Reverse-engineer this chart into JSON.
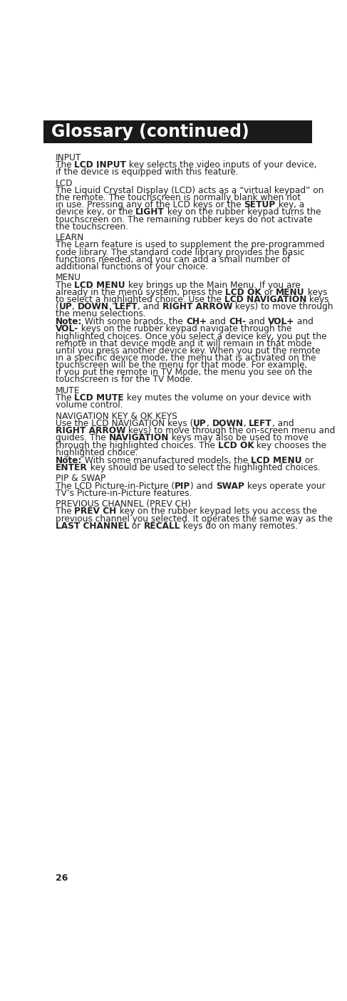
{
  "title": "Glossary (continued)",
  "title_bg": "#1a1a1a",
  "title_color": "#ffffff",
  "page_bg": "#ffffff",
  "page_number": "26",
  "body_color": "#222222",
  "sections": [
    {
      "heading": "INPUT",
      "paragraphs": [
        [
          {
            "text": "The ",
            "bold": false
          },
          {
            "text": "LCD INPUT",
            "bold": true
          },
          {
            "text": " key selects the video inputs of your device,",
            "bold": false
          },
          {
            "text": "\n",
            "bold": false
          },
          {
            "text": "if the device is equipped with this feature.",
            "bold": false
          }
        ]
      ]
    },
    {
      "heading": "LCD",
      "paragraphs": [
        [
          {
            "text": "The Liquid Crystal Display (LCD) acts as a “virtual keypad” on",
            "bold": false
          },
          {
            "text": "\n",
            "bold": false
          },
          {
            "text": "the remote. The touchscreen is normally blank when not",
            "bold": false
          },
          {
            "text": "\n",
            "bold": false
          },
          {
            "text": "in use. Pressing any of the LCD keys or the ",
            "bold": false
          },
          {
            "text": "SETUP",
            "bold": true
          },
          {
            "text": " key, a",
            "bold": false
          },
          {
            "text": "\n",
            "bold": false
          },
          {
            "text": "device key, or the ",
            "bold": false
          },
          {
            "text": "LIGHT",
            "bold": true
          },
          {
            "text": " key on the rubber keypad turns the",
            "bold": false
          },
          {
            "text": "\n",
            "bold": false
          },
          {
            "text": "touchscreen on. The remaining rubber keys do not activate",
            "bold": false
          },
          {
            "text": "\n",
            "bold": false
          },
          {
            "text": "the touchscreen.",
            "bold": false
          }
        ]
      ]
    },
    {
      "heading": "LEARN",
      "paragraphs": [
        [
          {
            "text": "The Learn feature is used to supplement the pre-programmed",
            "bold": false
          },
          {
            "text": "\n",
            "bold": false
          },
          {
            "text": "code library. The standard code library provides the basic",
            "bold": false
          },
          {
            "text": "\n",
            "bold": false
          },
          {
            "text": "functions needed, and you can add a small number of",
            "bold": false
          },
          {
            "text": "\n",
            "bold": false
          },
          {
            "text": "additional functions of your choice.",
            "bold": false
          }
        ]
      ]
    },
    {
      "heading": "MENU",
      "paragraphs": [
        [
          {
            "text": "The ",
            "bold": false
          },
          {
            "text": "LCD MENU",
            "bold": true
          },
          {
            "text": " key brings up the Main Menu. If you are",
            "bold": false
          },
          {
            "text": "\n",
            "bold": false
          },
          {
            "text": "already in the menu system, press the ",
            "bold": false
          },
          {
            "text": "LCD OK",
            "bold": true
          },
          {
            "text": " or ",
            "bold": false
          },
          {
            "text": "MENU",
            "bold": true
          },
          {
            "text": " keys",
            "bold": false
          },
          {
            "text": "\n",
            "bold": false
          },
          {
            "text": "to select a highlighted choice. Use the ",
            "bold": false
          },
          {
            "text": "LCD NAVIGATION",
            "bold": true
          },
          {
            "text": " keys",
            "bold": false
          },
          {
            "text": "\n",
            "bold": false
          },
          {
            "text": "(",
            "bold": false
          },
          {
            "text": "UP",
            "bold": true
          },
          {
            "text": ", ",
            "bold": false
          },
          {
            "text": "DOWN",
            "bold": true
          },
          {
            "text": ", ",
            "bold": false
          },
          {
            "text": "LEFT",
            "bold": true
          },
          {
            "text": ", and ",
            "bold": false
          },
          {
            "text": "RIGHT ARROW",
            "bold": true
          },
          {
            "text": " keys) to move through",
            "bold": false
          },
          {
            "text": "\n",
            "bold": false
          },
          {
            "text": "the menu selections.",
            "bold": false
          }
        ],
        [
          {
            "text": "Note:",
            "bold": true
          },
          {
            "text": " With some brands, the ",
            "bold": false
          },
          {
            "text": "CH+",
            "bold": true
          },
          {
            "text": " and ",
            "bold": false
          },
          {
            "text": "CH-",
            "bold": true
          },
          {
            "text": " and ",
            "bold": false
          },
          {
            "text": "VOL+",
            "bold": true
          },
          {
            "text": " and",
            "bold": false
          },
          {
            "text": "\n",
            "bold": false
          },
          {
            "text": "VOL-",
            "bold": true
          },
          {
            "text": " keys on the rubber keypad navigate through the",
            "bold": false
          },
          {
            "text": "\n",
            "bold": false
          },
          {
            "text": "highlighted choices. Once you select a device key, you put the",
            "bold": false
          },
          {
            "text": "\n",
            "bold": false
          },
          {
            "text": "remote in that device mode and it will remain in that mode",
            "bold": false
          },
          {
            "text": "\n",
            "bold": false
          },
          {
            "text": "until you press another device key. When you put the remote",
            "bold": false
          },
          {
            "text": "\n",
            "bold": false
          },
          {
            "text": "in a specific device mode, the menu that is activated on the",
            "bold": false
          },
          {
            "text": "\n",
            "bold": false
          },
          {
            "text": "touchscreen will be the menu for that mode. For example,",
            "bold": false
          },
          {
            "text": "\n",
            "bold": false
          },
          {
            "text": "if you put the remote in TV Mode, the menu you see on the",
            "bold": false
          },
          {
            "text": "\n",
            "bold": false
          },
          {
            "text": "touchscreen is for the TV Mode.",
            "bold": false
          }
        ]
      ]
    },
    {
      "heading": "MUTE",
      "paragraphs": [
        [
          {
            "text": "The ",
            "bold": false
          },
          {
            "text": "LCD MUTE",
            "bold": true
          },
          {
            "text": " key mutes the volume on your device with",
            "bold": false
          },
          {
            "text": "\n",
            "bold": false
          },
          {
            "text": "volume control.",
            "bold": false
          }
        ]
      ]
    },
    {
      "heading": "NAVIGATION KEY & OK KEYS",
      "paragraphs": [
        [
          {
            "text": "Use the LCD NAVIGATION keys (",
            "bold": false
          },
          {
            "text": "UP",
            "bold": true
          },
          {
            "text": ", ",
            "bold": false
          },
          {
            "text": "DOWN",
            "bold": true
          },
          {
            "text": ", ",
            "bold": false
          },
          {
            "text": "LEFT",
            "bold": true
          },
          {
            "text": ", and",
            "bold": false
          },
          {
            "text": "\n",
            "bold": false
          },
          {
            "text": "RIGHT ARROW",
            "bold": true
          },
          {
            "text": " keys) to move through the on-screen menu and",
            "bold": false
          },
          {
            "text": "\n",
            "bold": false
          },
          {
            "text": "guides. The ",
            "bold": false
          },
          {
            "text": "NAVIGATION",
            "bold": true
          },
          {
            "text": " keys may also be used to move",
            "bold": false
          },
          {
            "text": "\n",
            "bold": false
          },
          {
            "text": "through the highlighted choices. The ",
            "bold": false
          },
          {
            "text": "LCD OK",
            "bold": true
          },
          {
            "text": " key chooses the",
            "bold": false
          },
          {
            "text": "\n",
            "bold": false
          },
          {
            "text": "highlighted choice.",
            "bold": false
          }
        ],
        [
          {
            "text": "Note:",
            "bold": true
          },
          {
            "text": " With some manufactured models, the ",
            "bold": false
          },
          {
            "text": "LCD MENU",
            "bold": true
          },
          {
            "text": " or",
            "bold": false
          },
          {
            "text": "\n",
            "bold": false
          },
          {
            "text": "ENTER",
            "bold": true
          },
          {
            "text": " key should be used to select the highlighted choices.",
            "bold": false
          }
        ]
      ]
    },
    {
      "heading": "PIP & SWAP",
      "paragraphs": [
        [
          {
            "text": "The LCD Picture-in-Picture (",
            "bold": false
          },
          {
            "text": "PIP",
            "bold": true
          },
          {
            "text": ") and ",
            "bold": false
          },
          {
            "text": "SWAP",
            "bold": true
          },
          {
            "text": " keys operate your",
            "bold": false
          },
          {
            "text": "\n",
            "bold": false
          },
          {
            "text": "TV’s Picture-in-Picture features.",
            "bold": false
          }
        ]
      ]
    },
    {
      "heading": "PREVIOUS CHANNEL (PREV CH)",
      "paragraphs": [
        [
          {
            "text": "The ",
            "bold": false
          },
          {
            "text": "PREV CH",
            "bold": true
          },
          {
            "text": " key on the rubber keypad lets you access the",
            "bold": false
          },
          {
            "text": "\n",
            "bold": false
          },
          {
            "text": "previous channel you selected. It operates the same way as the",
            "bold": false
          },
          {
            "text": "\n",
            "bold": false
          },
          {
            "text": "LAST CHANNEL",
            "bold": true
          },
          {
            "text": " or ",
            "bold": false
          },
          {
            "text": "RECALL",
            "bold": true
          },
          {
            "text": " keys do on many remotes.",
            "bold": false
          }
        ]
      ]
    }
  ]
}
